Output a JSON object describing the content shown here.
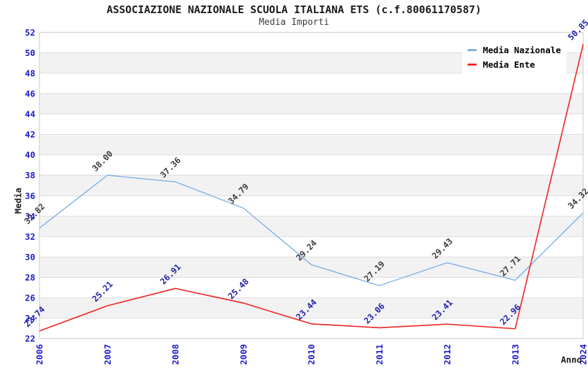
{
  "chart_data": {
    "type": "line",
    "title": "ASSOCIAZIONE NAZIONALE SCUOLA ITALIANA ETS (c.f.80061170587)",
    "subtitle": "Media Importi",
    "xlabel": "Anno",
    "ylabel": "Media",
    "categories": [
      "2006",
      "2007",
      "2008",
      "2009",
      "2010",
      "2011",
      "2012",
      "2013",
      "2024"
    ],
    "series": [
      {
        "name": "Media Nazionale",
        "color": "#7FB0E4",
        "label_color": "#3C3C3C",
        "values": [
          32.82,
          38.0,
          37.36,
          34.79,
          29.24,
          27.19,
          29.43,
          27.71,
          34.32
        ],
        "labels": [
          "32.82",
          "38.00",
          "37.36",
          "34.79",
          "29.24",
          "27.19",
          "29.43",
          "27.71",
          "34.32"
        ]
      },
      {
        "name": "Media Ente",
        "color": "#EE2C2C",
        "label_color": "#1F1FA6",
        "values": [
          22.74,
          25.21,
          26.91,
          25.48,
          23.44,
          23.06,
          23.41,
          22.96,
          50.85
        ],
        "labels": [
          "22.74",
          "25.21",
          "26.91",
          "25.48",
          "23.44",
          "23.06",
          "23.41",
          "22.96",
          "50.85"
        ]
      }
    ],
    "ylim": [
      22,
      52
    ],
    "ytick_step": 2,
    "grid": true,
    "legend_position": "top-right",
    "colors": {
      "tick_label": "#1C1CCC",
      "band": "#F2F2F2",
      "grid_line": "#DEDEDE",
      "plot_border": "#C8C8C8"
    }
  }
}
